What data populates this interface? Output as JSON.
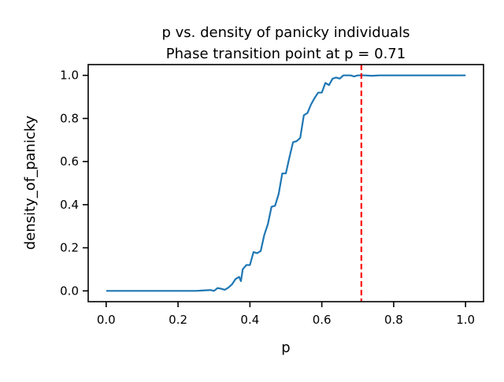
{
  "chart_data": {
    "type": "line",
    "title": "p vs. density of panicky individuals",
    "subtitle": "Phase transition point at p = 0.71",
    "xlabel": "p",
    "ylabel": "density_of_panicky",
    "xlim": [
      -0.05,
      1.05
    ],
    "ylim": [
      -0.05,
      1.05
    ],
    "xticks": [
      "0.0",
      "0.2",
      "0.4",
      "0.6",
      "0.8",
      "1.0"
    ],
    "yticks": [
      "0.0",
      "0.2",
      "0.4",
      "0.6",
      "0.8",
      "1.0"
    ],
    "grid": false,
    "series": [
      {
        "color": "#1f77b4",
        "x": [
          0.0,
          0.05,
          0.1,
          0.15,
          0.2,
          0.25,
          0.27,
          0.29,
          0.3,
          0.31,
          0.32,
          0.33,
          0.34,
          0.35,
          0.36,
          0.37,
          0.375,
          0.38,
          0.39,
          0.4,
          0.41,
          0.42,
          0.43,
          0.44,
          0.45,
          0.46,
          0.47,
          0.48,
          0.49,
          0.5,
          0.51,
          0.52,
          0.53,
          0.54,
          0.55,
          0.56,
          0.57,
          0.58,
          0.59,
          0.6,
          0.61,
          0.62,
          0.63,
          0.64,
          0.65,
          0.66,
          0.67,
          0.68,
          0.69,
          0.7,
          0.72,
          0.74,
          0.76,
          0.8,
          0.9,
          1.0
        ],
        "y": [
          0.0,
          0.0,
          0.0,
          0.0,
          0.0,
          0.0,
          0.002,
          0.004,
          0.0,
          0.013,
          0.01,
          0.005,
          0.015,
          0.03,
          0.055,
          0.065,
          0.045,
          0.1,
          0.12,
          0.12,
          0.18,
          0.175,
          0.185,
          0.26,
          0.31,
          0.39,
          0.395,
          0.45,
          0.545,
          0.545,
          0.62,
          0.69,
          0.695,
          0.71,
          0.815,
          0.825,
          0.865,
          0.895,
          0.92,
          0.92,
          0.965,
          0.955,
          0.985,
          0.99,
          0.985,
          1.0,
          1.0,
          1.0,
          0.995,
          1.0,
          1.0,
          0.998,
          1.0,
          1.0,
          1.0,
          1.0
        ]
      }
    ],
    "vline": {
      "x": 0.71,
      "color": "#ff0000",
      "style": "dashed"
    }
  }
}
